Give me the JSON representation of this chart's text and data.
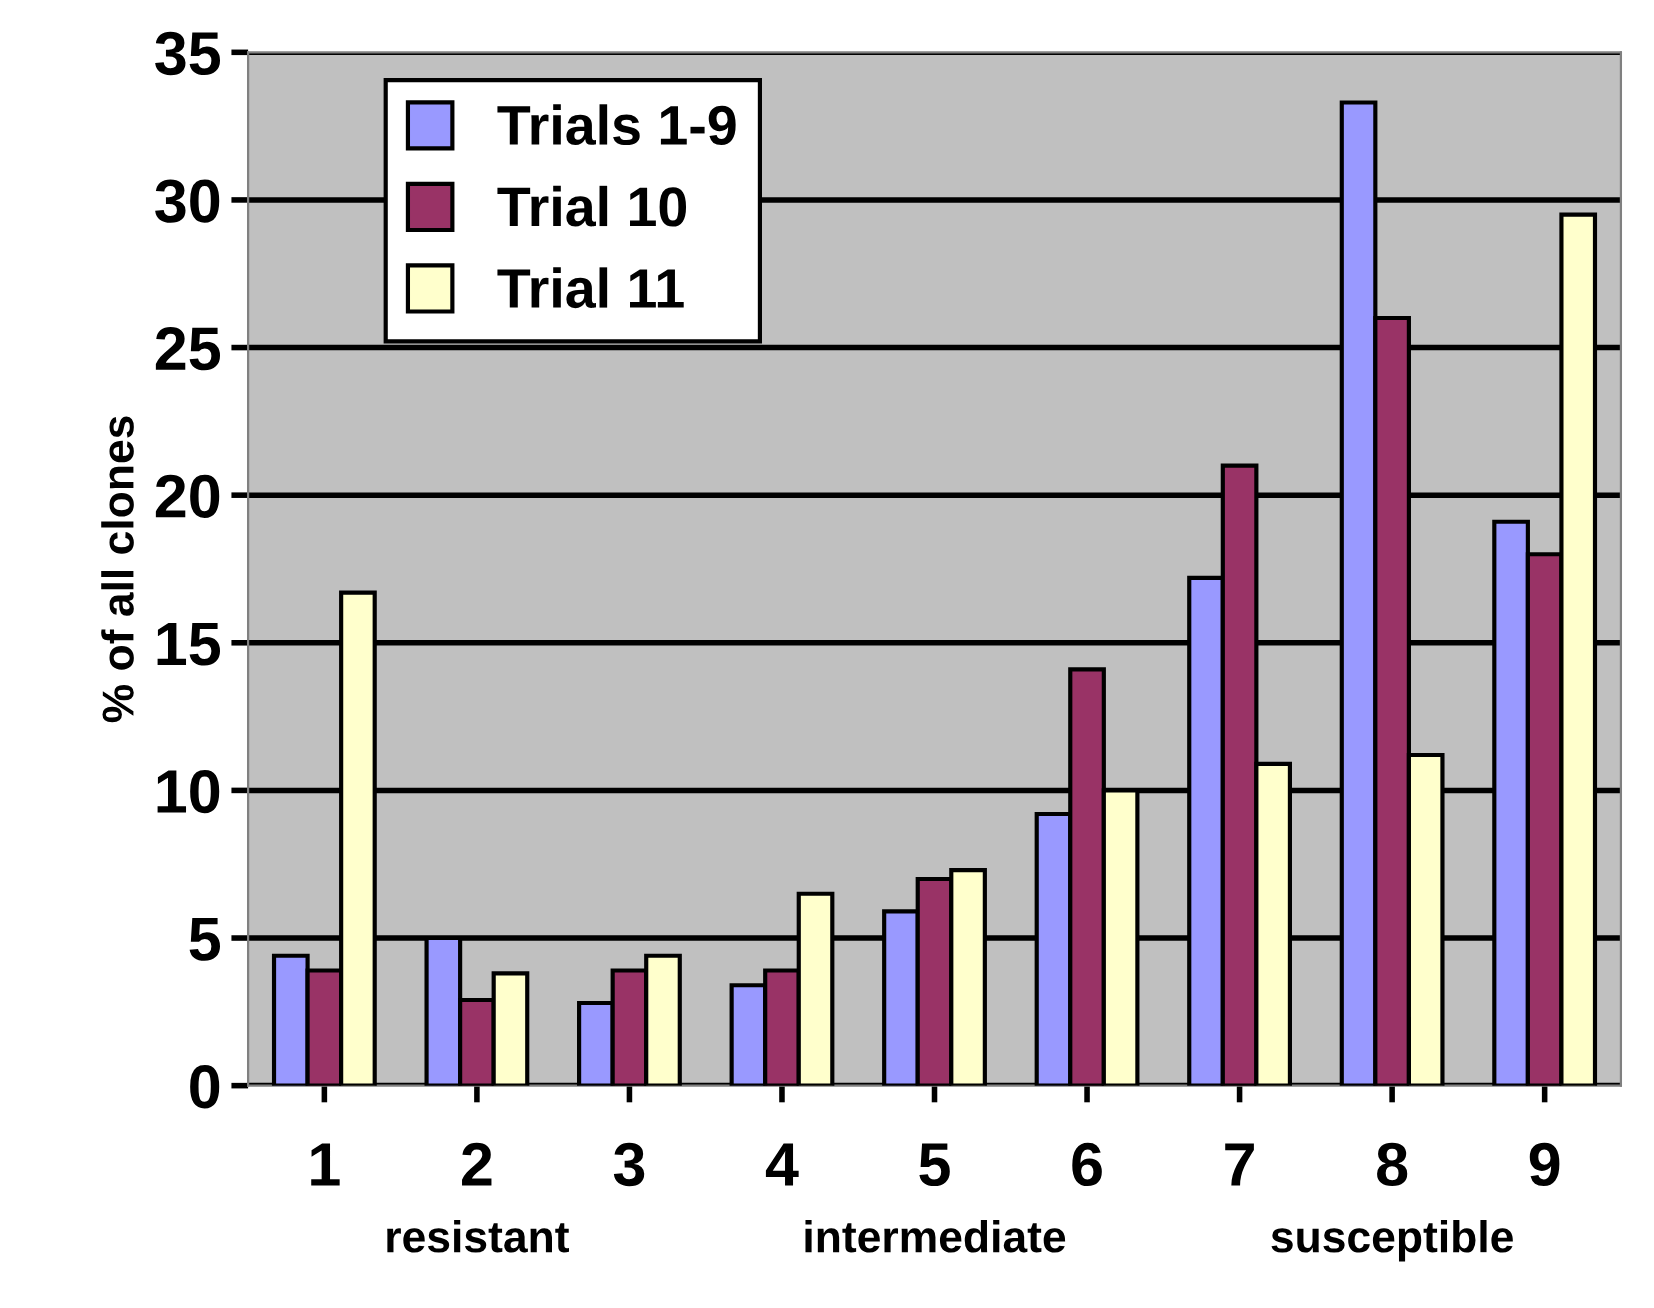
{
  "chart_data": {
    "type": "bar",
    "ylabel": "% of all clones",
    "categories": [
      "1",
      "2",
      "3",
      "4",
      "5",
      "6",
      "7",
      "8",
      "9"
    ],
    "series": [
      {
        "name": "Trials 1-9",
        "color": "#9999ff",
        "values": [
          4.4,
          5.0,
          2.8,
          3.4,
          5.9,
          9.2,
          17.2,
          33.3,
          19.1
        ]
      },
      {
        "name": "Trial 10",
        "color": "#993366",
        "values": [
          3.9,
          2.9,
          3.9,
          3.9,
          7.0,
          14.1,
          21.0,
          26.0,
          18.0
        ]
      },
      {
        "name": "Trial 11",
        "color": "#ffffcc",
        "values": [
          16.7,
          3.8,
          4.4,
          6.5,
          7.3,
          10.0,
          10.9,
          11.2,
          29.5
        ]
      }
    ],
    "ylim": [
      0,
      35
    ],
    "yticks": [
      0,
      5,
      10,
      15,
      20,
      25,
      30,
      35
    ],
    "grid": "y",
    "legend": "top left",
    "annotations": [
      "resistant",
      "intermediate",
      "susceptible"
    ]
  }
}
